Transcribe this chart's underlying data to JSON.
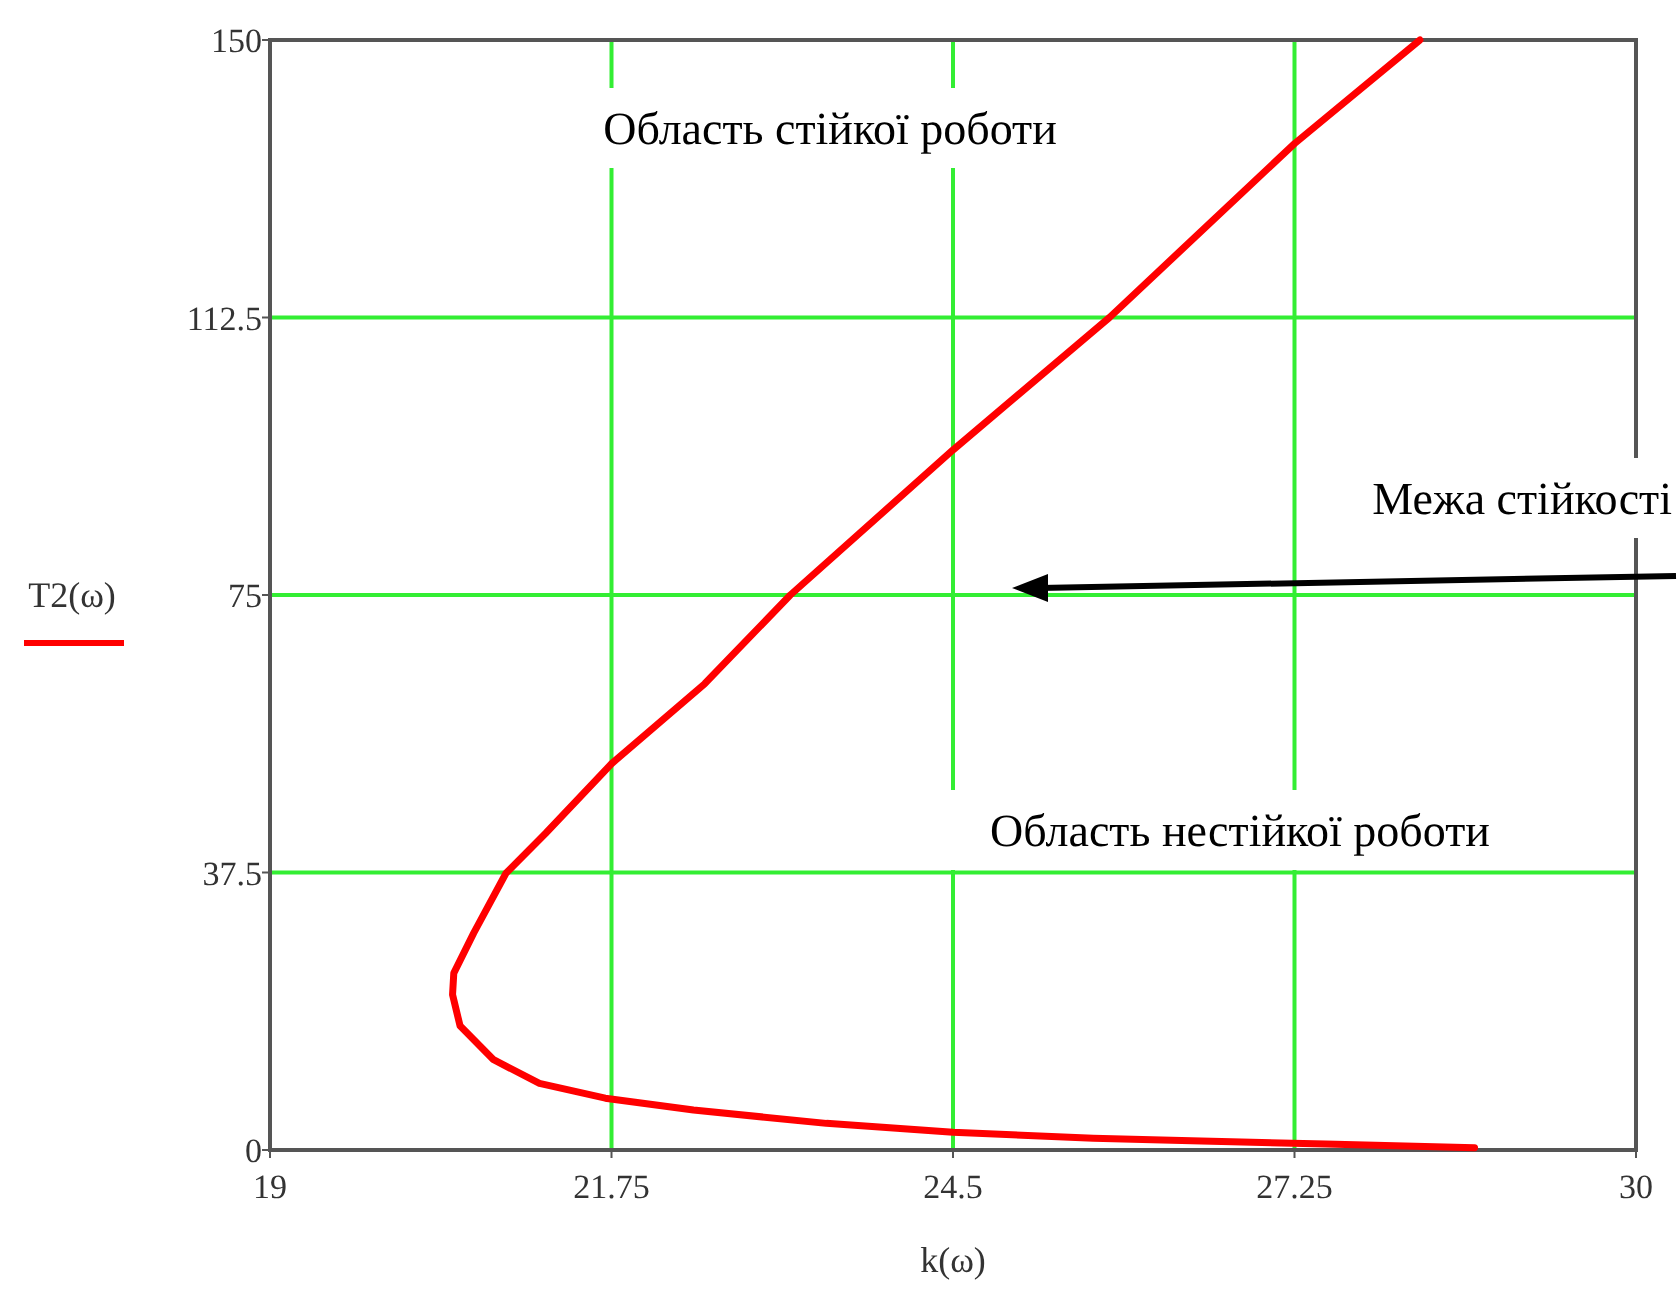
{
  "chart_data": {
    "type": "line",
    "xlabel": "k(ω)",
    "ylabel": "T2(ω)",
    "annotations": [
      "Область стійкої роботи",
      "Межа стійкості",
      "Область нестійкої роботи"
    ],
    "xlim": [
      19,
      30
    ],
    "ylim": [
      0,
      150
    ],
    "xticks": [
      19,
      21.75,
      24.5,
      27.25,
      30
    ],
    "yticks": [
      0,
      37.5,
      75,
      112.5,
      150
    ],
    "grid": true,
    "series": [
      {
        "color": "#ff0000",
        "x": [
          28.7,
          27.5,
          26.5,
          25.63,
          24.5,
          23.48,
          22.41,
          21.7,
          21.17,
          20.8,
          20.53,
          20.47,
          20.48,
          20.64,
          20.9,
          21.22,
          21.75,
          22.5,
          23.19,
          24.5,
          25.76,
          27.25,
          28.26
        ],
        "values": [
          0.3,
          0.8,
          1.2,
          1.6,
          2.4,
          3.6,
          5.4,
          7,
          9,
          12.2,
          16.8,
          21,
          23.9,
          29.3,
          37.4,
          42.8,
          52.2,
          63,
          75,
          94.6,
          112.5,
          136,
          150
        ]
      }
    ]
  }
}
